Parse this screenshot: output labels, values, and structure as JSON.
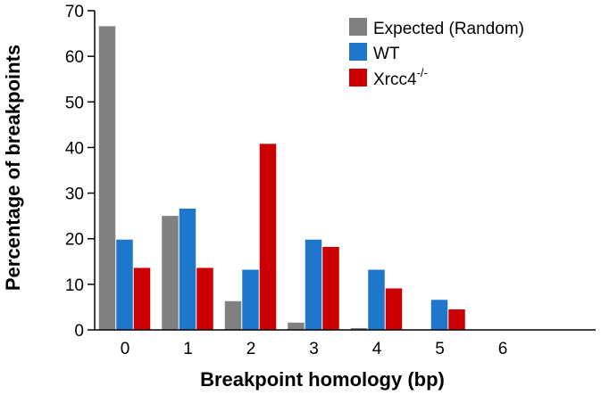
{
  "chart_data": {
    "type": "bar",
    "categories": [
      "0",
      "1",
      "2",
      "3",
      "4",
      "5",
      "6"
    ],
    "xlabel": "Breakpoint homology (bp)",
    "ylabel": "Percentage of breakpoints",
    "ylim": [
      0,
      70
    ],
    "yticks": [
      "0",
      "10",
      "20",
      "30",
      "40",
      "50",
      "60",
      "70"
    ],
    "grid": false,
    "legend_position": "top-right",
    "series": [
      {
        "name": "Expected (Random)",
        "color": "#808080",
        "values": [
          66.6,
          25.0,
          6.3,
          1.6,
          0.4,
          0.1,
          0
        ]
      },
      {
        "name": "WT",
        "color": "#1f77cc",
        "values": [
          19.8,
          26.6,
          13.2,
          19.8,
          13.2,
          6.6,
          0
        ]
      },
      {
        "name": "Xrcc4",
        "name_superscript": "-/-",
        "color": "#cc0000",
        "values": [
          13.6,
          13.6,
          40.8,
          18.2,
          9.1,
          4.5,
          0
        ]
      }
    ]
  }
}
